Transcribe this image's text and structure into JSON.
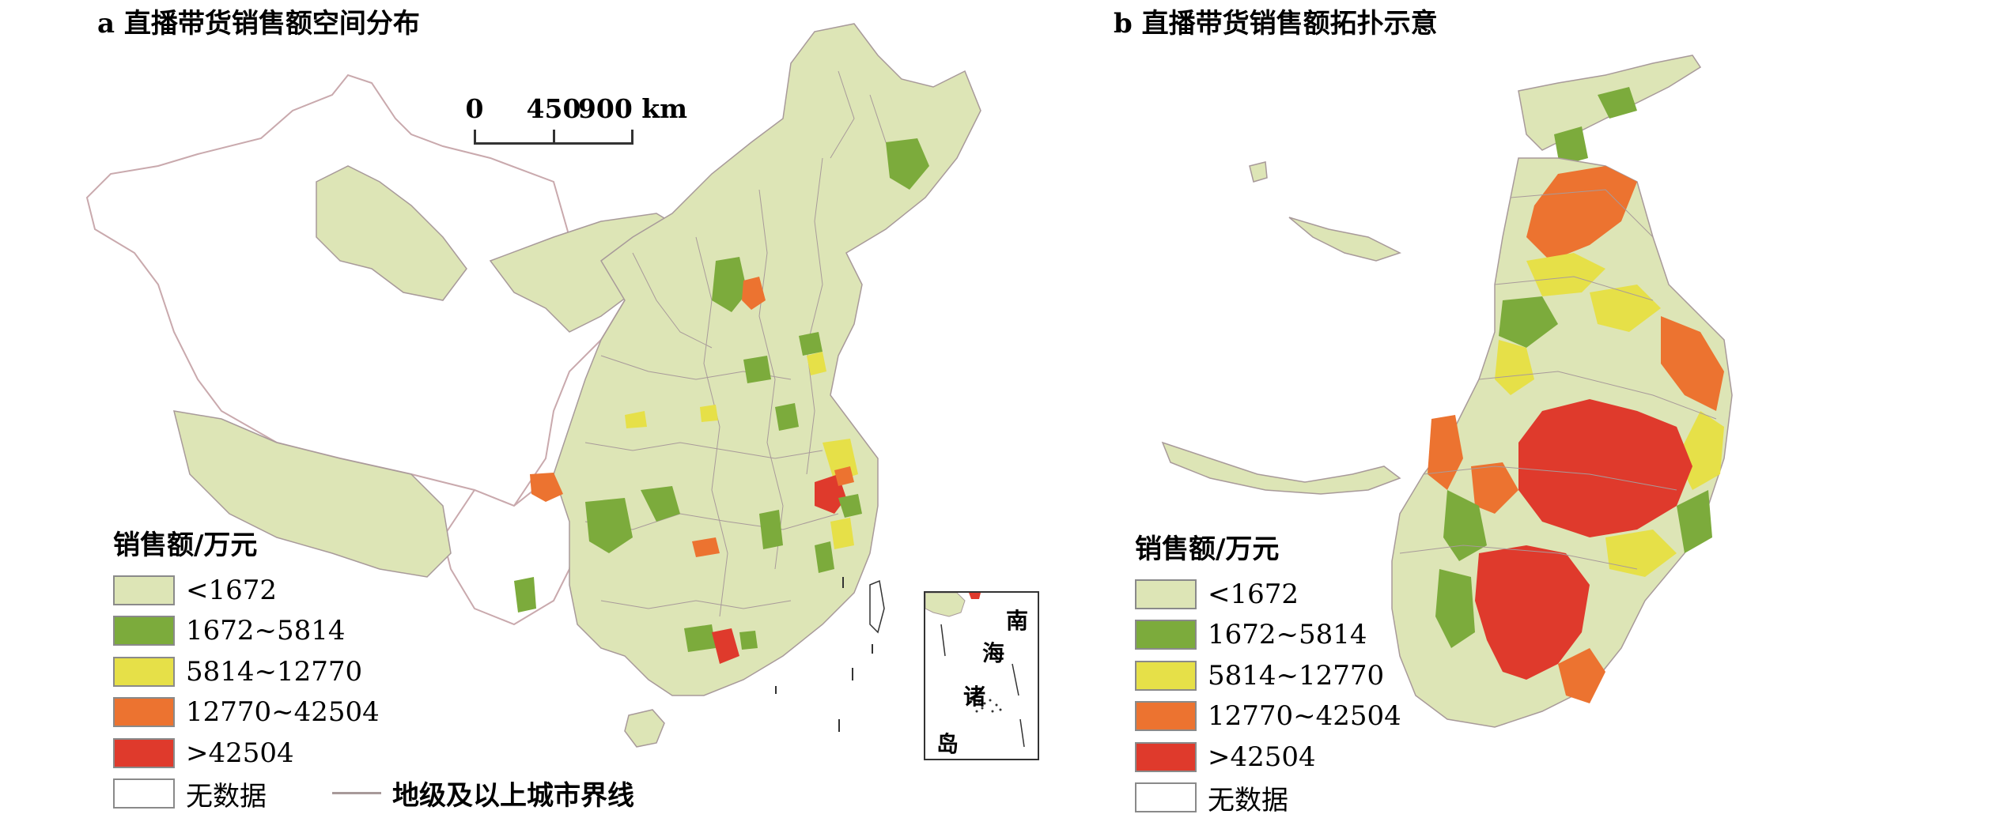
{
  "panels": {
    "a": {
      "title": "a 直播带货销售额空间分布"
    },
    "b": {
      "title": "b 直播带货销售额拓扑示意"
    }
  },
  "scale_bar": {
    "labels": [
      "0",
      "450",
      "900 km"
    ]
  },
  "legend": {
    "title": "销售额/万元",
    "items": [
      {
        "label": "<1672",
        "color": "#dde5b6"
      },
      {
        "label": "1672~5814",
        "color": "#7cab3c"
      },
      {
        "label": "5814~12770",
        "color": "#e6e048"
      },
      {
        "label": "12770~42504",
        "color": "#ec7330"
      },
      {
        "label": ">42504",
        "color": "#df3a2c"
      },
      {
        "label": "无数据",
        "color": "#ffffff"
      }
    ]
  },
  "boundary_note": "地级及以上城市界线",
  "inset": {
    "chars": [
      "南",
      "海",
      "诸",
      "岛"
    ]
  },
  "colors": {
    "boundary": "#a89a9a",
    "no_data_border": "#c9a9ad"
  }
}
